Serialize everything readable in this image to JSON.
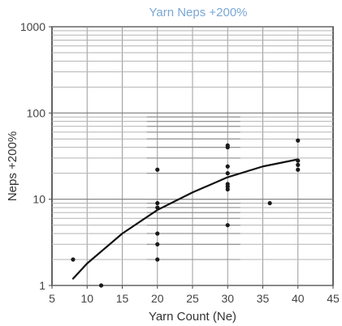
{
  "chart_data": {
    "type": "scatter",
    "title": "Yarn Neps +200%",
    "xlabel": "Yarn Count (Ne)",
    "ylabel": "Neps +200%",
    "xlim": [
      5,
      45
    ],
    "ylim": [
      1,
      1000
    ],
    "y_scale": "log",
    "grid": true,
    "x_ticks": [
      5,
      10,
      15,
      20,
      25,
      30,
      35,
      40,
      45
    ],
    "x_tick_labels": [
      "5",
      "10",
      "15",
      "20",
      "25",
      "30",
      "35",
      "40",
      "45"
    ],
    "y_ticks": [
      1,
      10,
      100,
      1000
    ],
    "y_tick_labels": [
      "1",
      "10",
      "100",
      "1000"
    ],
    "series": [
      {
        "type": "scatter",
        "color": "#1a1a1a",
        "points": [
          [
            8,
            2
          ],
          [
            12,
            1
          ],
          [
            20,
            2
          ],
          [
            20,
            3
          ],
          [
            20,
            4
          ],
          [
            20,
            8
          ],
          [
            20,
            9
          ],
          [
            20,
            22
          ],
          [
            30,
            5
          ],
          [
            30,
            13
          ],
          [
            30,
            14
          ],
          [
            30,
            15
          ],
          [
            30,
            20
          ],
          [
            30,
            24
          ],
          [
            30,
            40
          ],
          [
            30,
            42
          ],
          [
            36,
            9
          ],
          [
            40,
            22
          ],
          [
            40,
            25
          ],
          [
            40,
            28
          ],
          [
            40,
            48
          ]
        ]
      },
      {
        "type": "line",
        "color": "#111111",
        "points": [
          [
            8,
            1.2
          ],
          [
            10,
            1.8
          ],
          [
            15,
            4
          ],
          [
            20,
            7.5
          ],
          [
            25,
            12
          ],
          [
            30,
            18
          ],
          [
            35,
            24
          ],
          [
            40,
            29
          ]
        ]
      }
    ]
  }
}
